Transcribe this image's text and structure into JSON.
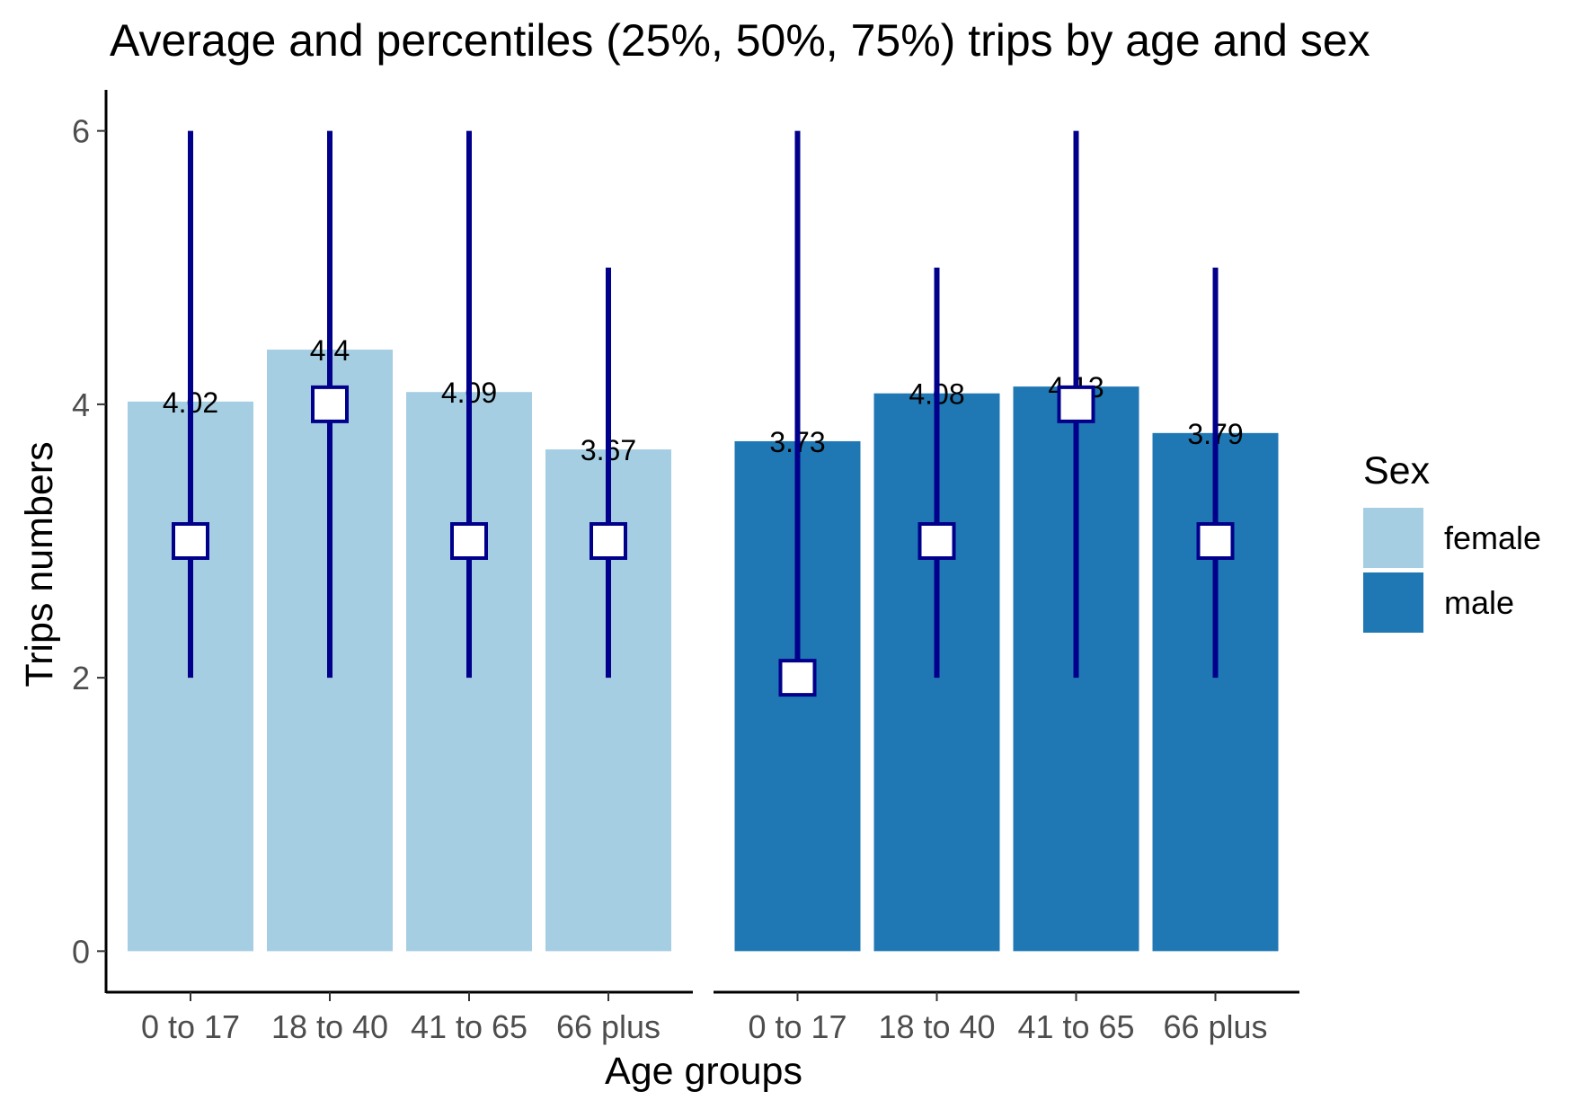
{
  "chart_data": {
    "type": "bar",
    "title": "Average and percentiles (25%, 50%, 75%) trips by age and sex",
    "xlabel": "Age groups",
    "ylabel": "Trips numbers",
    "ylim": [
      -0.3,
      6.3
    ],
    "yticks": [
      0,
      2,
      4,
      6
    ],
    "grid": false,
    "legend": {
      "title": "Sex",
      "position": "right"
    },
    "categories": [
      "0 to 17",
      "18 to 40",
      "41 to 65",
      "66 plus"
    ],
    "series": [
      {
        "name": "female",
        "color": "#a6cee3",
        "values": [
          4.02,
          4.4,
          4.09,
          3.67
        ],
        "labels": [
          "4.02",
          "4.4",
          "4.09",
          "3.67"
        ],
        "p25": [
          2,
          2,
          2,
          2
        ],
        "p50": [
          3,
          4,
          3,
          3
        ],
        "p75": [
          6,
          6,
          6,
          5
        ]
      },
      {
        "name": "male",
        "color": "#1f78b4",
        "values": [
          3.73,
          4.08,
          4.13,
          3.79
        ],
        "labels": [
          "3.73",
          "4.08",
          "4.13",
          "3.79"
        ],
        "p25": [
          2,
          2,
          2,
          2
        ],
        "p50": [
          2,
          3,
          4,
          3
        ],
        "p75": [
          6,
          5,
          6,
          5
        ]
      }
    ],
    "errorbar_color": "#00008b",
    "median_marker_fill": "#ffffff"
  }
}
